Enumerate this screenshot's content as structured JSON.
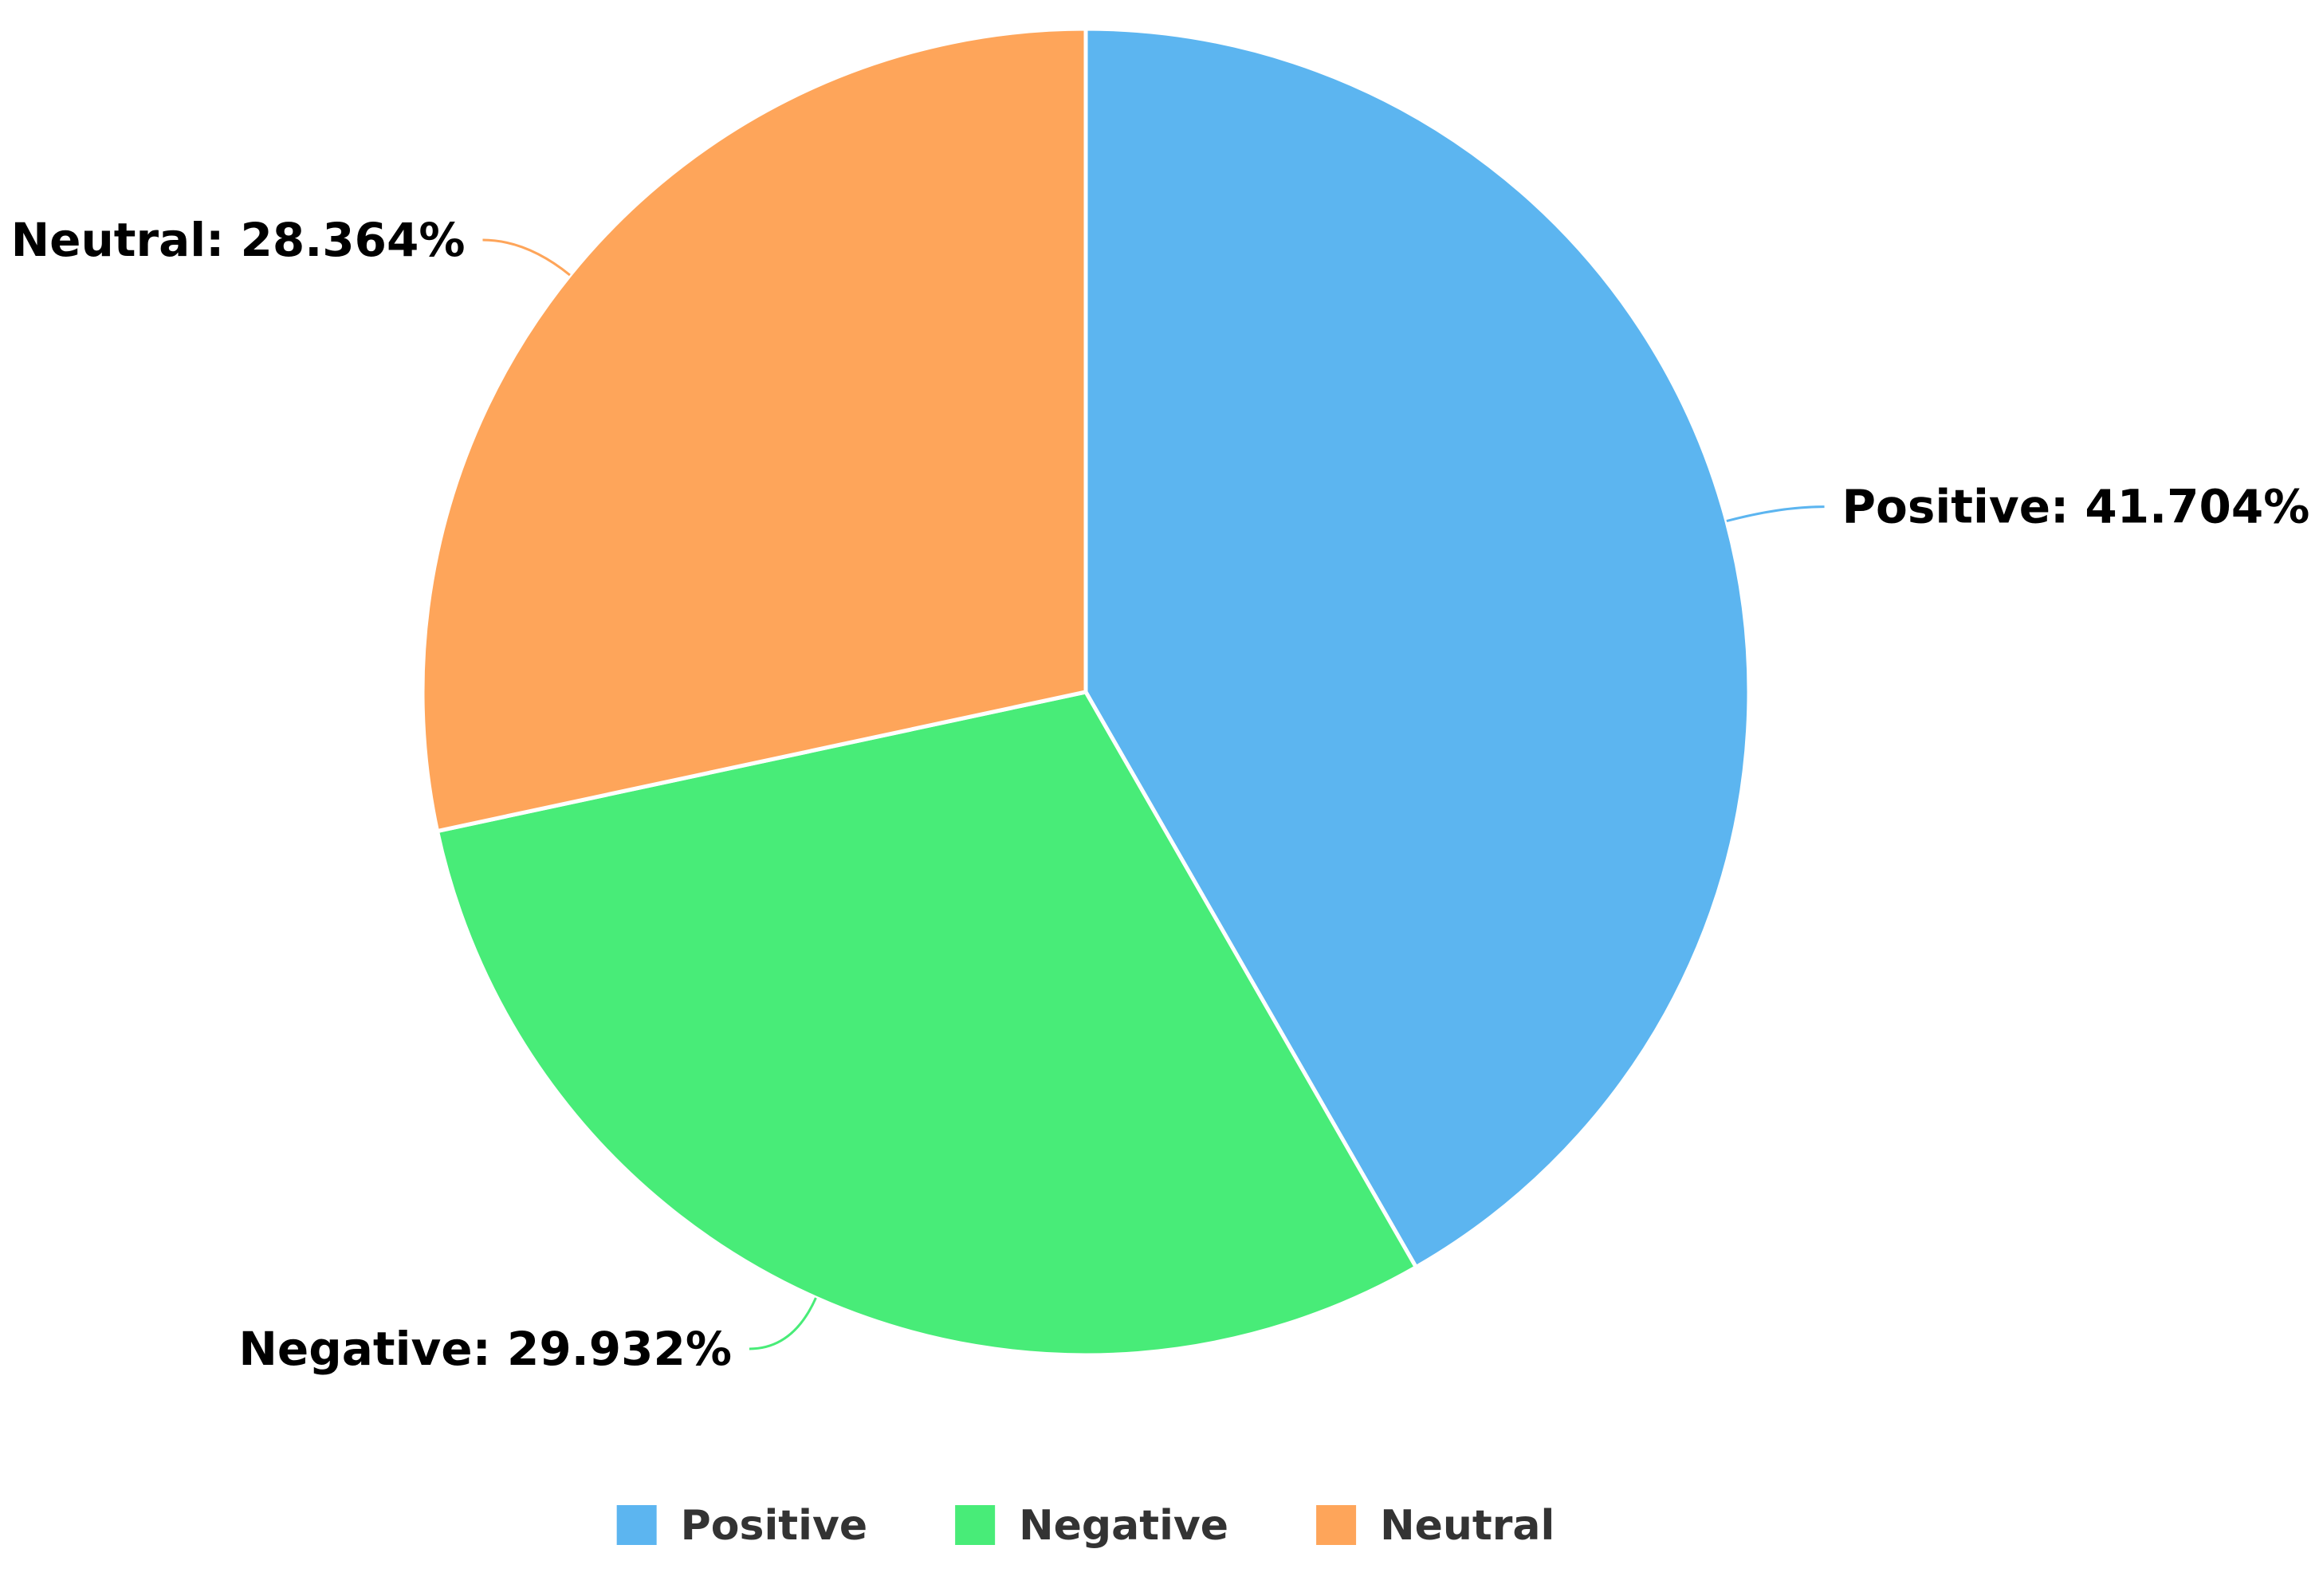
{
  "chart_data": {
    "type": "pie",
    "title": "",
    "categories": [
      "Positive",
      "Negative",
      "Neutral"
    ],
    "values": [
      41.704,
      29.932,
      28.364
    ],
    "value_suffix": "%",
    "colors": [
      "#5cb5f0",
      "#48ec78",
      "#fea55a"
    ],
    "start_angle_deg": 0,
    "direction": "clockwise",
    "data_labels": [
      {
        "text": "Positive: 41.704%",
        "anchor": "start"
      },
      {
        "text": "Negative: 29.932%",
        "anchor": "end"
      },
      {
        "text": "Neutral: 28.364%",
        "anchor": "end"
      }
    ],
    "legend": {
      "position": "bottom-center",
      "entries": [
        "Positive",
        "Negative",
        "Neutral"
      ]
    }
  }
}
